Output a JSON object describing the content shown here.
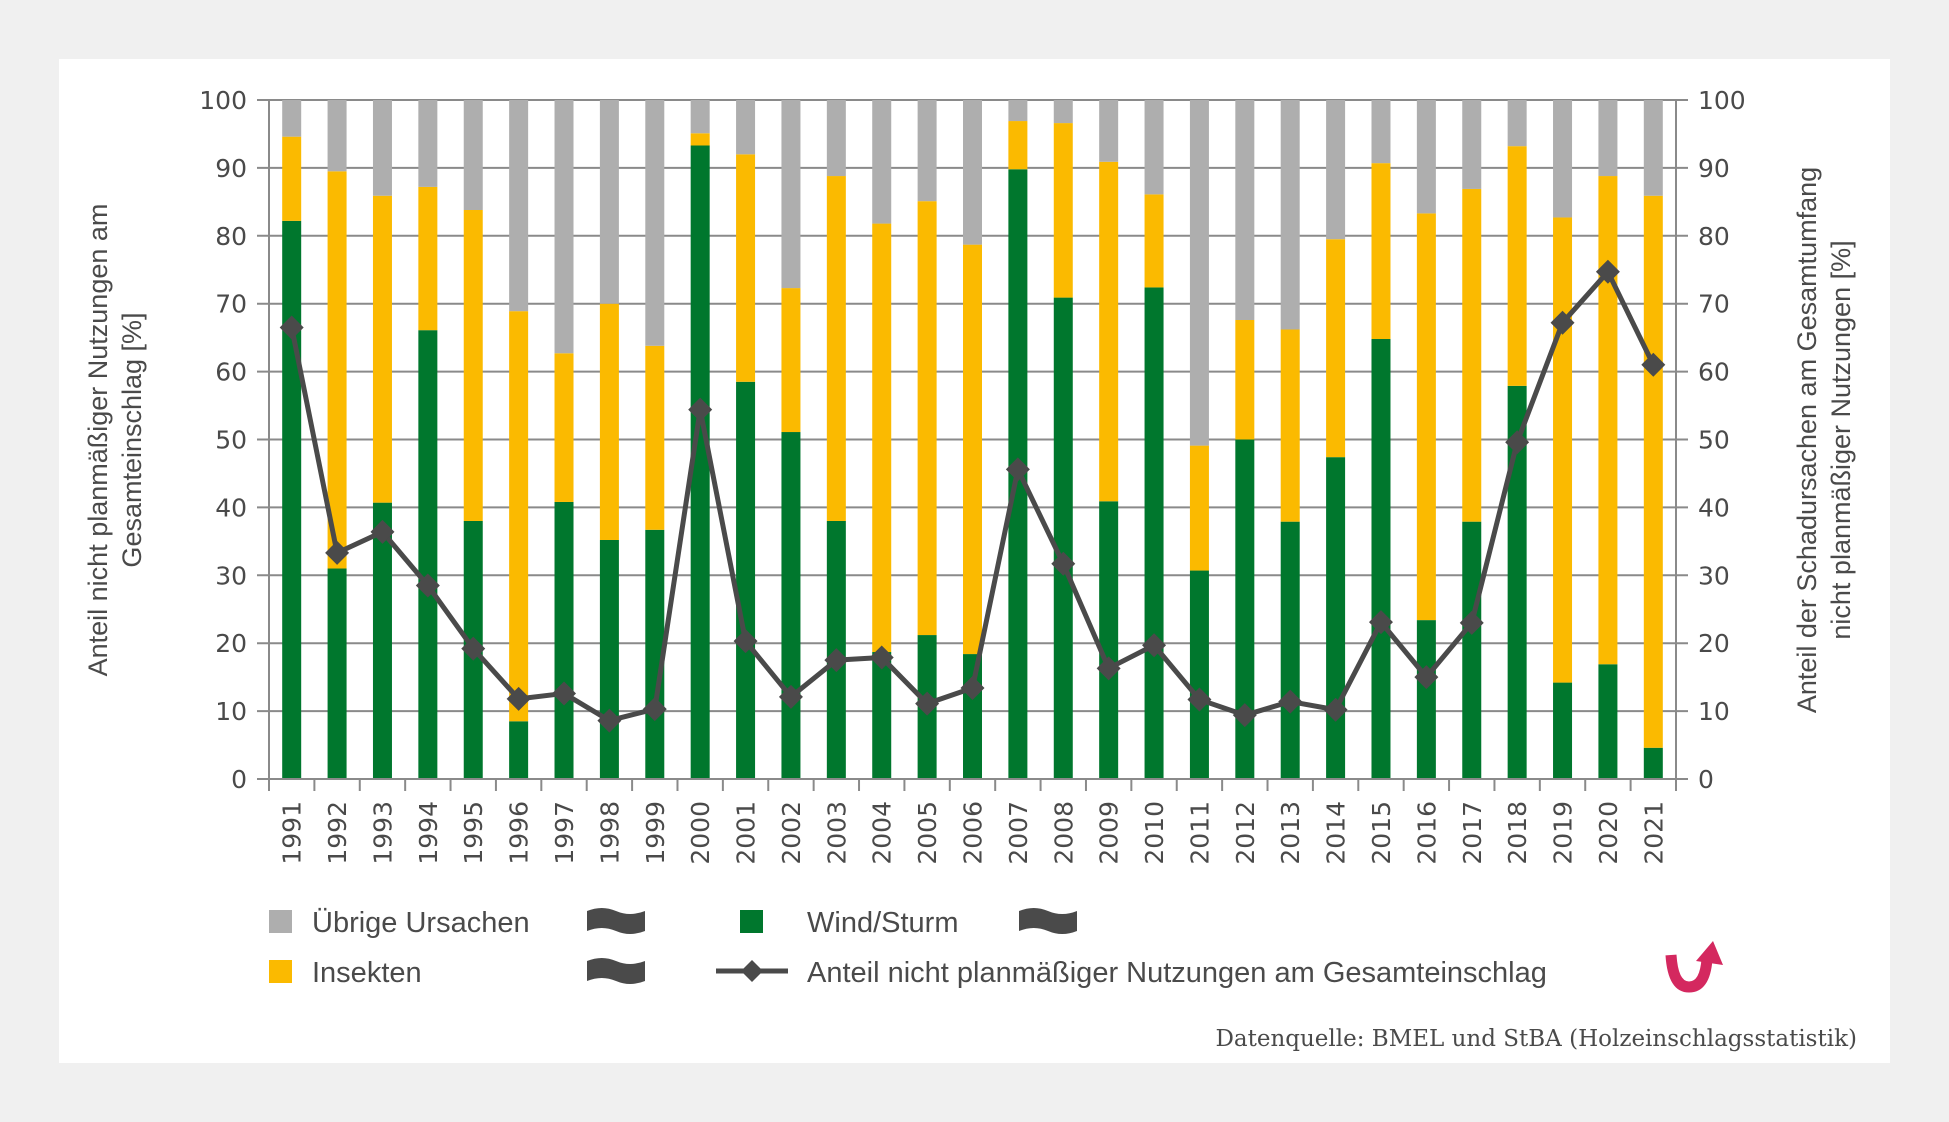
{
  "chart_data": {
    "type": "bar",
    "subtype": "stacked-bar-with-line",
    "categories": [
      "1991",
      "1992",
      "1993",
      "1994",
      "1995",
      "1996",
      "1997",
      "1998",
      "1999",
      "2000",
      "2001",
      "2002",
      "2003",
      "2004",
      "2005",
      "2006",
      "2007",
      "2008",
      "2009",
      "2010",
      "2011",
      "2012",
      "2013",
      "2014",
      "2015",
      "2016",
      "2017",
      "2018",
      "2019",
      "2020",
      "2021"
    ],
    "series": [
      {
        "name": "Wind/Sturm",
        "kind": "bar",
        "color": "#00772d",
        "values": [
          82.2,
          31.0,
          40.7,
          66.1,
          38.0,
          8.5,
          40.8,
          35.2,
          36.7,
          93.3,
          58.5,
          51.1,
          38.0,
          18.7,
          21.2,
          18.4,
          89.8,
          70.9,
          40.9,
          72.4,
          30.7,
          50.0,
          37.9,
          47.4,
          64.8,
          23.4,
          37.9,
          57.9,
          14.2,
          16.9,
          4.6
        ]
      },
      {
        "name": "Insekten",
        "kind": "bar",
        "color": "#fbba00",
        "values": [
          12.4,
          58.5,
          45.2,
          21.1,
          45.8,
          60.4,
          21.9,
          34.8,
          27.1,
          1.8,
          33.5,
          21.2,
          50.8,
          63.1,
          63.9,
          60.3,
          7.1,
          25.7,
          50.0,
          13.7,
          18.4,
          17.6,
          28.3,
          32.1,
          25.9,
          59.9,
          49.0,
          35.3,
          68.5,
          71.9,
          81.3
        ]
      },
      {
        "name": "Übrige Ursachen",
        "kind": "bar",
        "color": "#aeaeae",
        "values": [
          5.4,
          10.5,
          14.1,
          12.8,
          16.2,
          31.1,
          37.3,
          30.0,
          36.2,
          4.9,
          8.0,
          27.7,
          11.2,
          18.2,
          14.9,
          21.3,
          3.1,
          3.4,
          9.1,
          13.9,
          50.9,
          32.4,
          33.8,
          20.5,
          9.3,
          16.7,
          13.1,
          6.8,
          17.3,
          11.2,
          14.1
        ]
      },
      {
        "name": "Anteil nicht planmäßiger Nutzungen am Gesamteinschlag",
        "kind": "line",
        "marker": "diamond",
        "color": "#4a4a4a",
        "values": [
          66.5,
          33.3,
          36.4,
          28.5,
          19.2,
          11.8,
          12.6,
          8.6,
          10.3,
          54.4,
          20.3,
          12.1,
          17.5,
          17.9,
          11.1,
          13.4,
          45.6,
          31.7,
          16.3,
          19.7,
          11.7,
          9.4,
          11.4,
          10.2,
          23.1,
          15.0,
          23.0,
          49.6,
          67.2,
          74.7,
          61.0
        ]
      }
    ],
    "title": "",
    "xlabel": "",
    "ylabel": "Anteil nicht planmäßiger Nutzungen am Gesamteinschlag [%]",
    "y2label": "Anteil der Schadursachen am Gesamtumfang nicht planmäßiger Nutzungen [%]",
    "ylim": [
      0,
      100
    ],
    "y2lim": [
      0,
      100
    ],
    "yticks": [
      0,
      10,
      20,
      30,
      40,
      50,
      60,
      70,
      80,
      90,
      100
    ],
    "grid": true,
    "legend_position": "bottom",
    "source": "Datenquelle: BMEL und StBA (Holzeinschlagsstatistik)"
  },
  "axes": {
    "left_title_line1": "Anteil nicht planmäßiger Nutzungen am",
    "left_title_line2": "Gesamteinschlag [%]",
    "right_title_line1": "Anteil der Schadursachen am Gesamtumfang",
    "right_title_line2": "nicht planmäßiger Nutzungen [%]"
  },
  "legend": {
    "items": [
      {
        "label": "Übrige Ursachen",
        "trend_icon": "wave-icon"
      },
      {
        "label": "Wind/Sturm",
        "trend_icon": "wave-icon"
      },
      {
        "label": "Insekten",
        "trend_icon": "wave-icon"
      },
      {
        "label": "Anteil nicht planmäßiger Nutzungen am Gesamteinschlag",
        "trend_icon": "curved-up-arrow-icon"
      }
    ],
    "trend_up_color": "#d4285f"
  },
  "footer": {
    "source": "Datenquelle: BMEL und StBA (Holzeinschlagsstatistik)"
  }
}
